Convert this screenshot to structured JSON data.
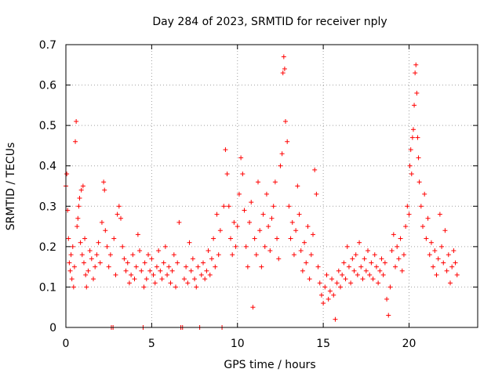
{
  "chart_data": {
    "type": "scatter",
    "title": "Day 284 of 2023, SRMTID for receiver nply",
    "xlabel": "GPS time / hours",
    "ylabel": "SRMTID / TECUs",
    "xlim": [
      0,
      24
    ],
    "ylim": [
      0,
      0.7
    ],
    "xticks": [
      0,
      5,
      10,
      15,
      20
    ],
    "xtick_labels": [
      "0",
      "5",
      "10",
      "15",
      "20"
    ],
    "yticks": [
      0,
      0.1,
      0.2,
      0.3,
      0.4,
      0.5,
      0.6,
      0.7
    ],
    "ytick_labels": [
      "0",
      "0.1",
      "0.2",
      "0.3",
      "0.4",
      "0.5",
      "0.6",
      "0.7"
    ],
    "grid": true,
    "marker": "+",
    "series": [
      {
        "name": "SRMTID",
        "color": "#ff0000",
        "points": [
          [
            0.0,
            0.35
          ],
          [
            0.05,
            0.38
          ],
          [
            0.1,
            0.29
          ],
          [
            0.15,
            0.22
          ],
          [
            0.2,
            0.16
          ],
          [
            0.25,
            0.14
          ],
          [
            0.3,
            0.18
          ],
          [
            0.35,
            0.12
          ],
          [
            0.4,
            0.2
          ],
          [
            0.45,
            0.1
          ],
          [
            0.5,
            0.15
          ],
          [
            0.55,
            0.46
          ],
          [
            0.6,
            0.51
          ],
          [
            0.65,
            0.25
          ],
          [
            0.7,
            0.27
          ],
          [
            0.75,
            0.3
          ],
          [
            0.8,
            0.32
          ],
          [
            0.85,
            0.21
          ],
          [
            0.9,
            0.34
          ],
          [
            0.95,
            0.18
          ],
          [
            1.0,
            0.35
          ],
          [
            1.05,
            0.16
          ],
          [
            1.1,
            0.22
          ],
          [
            1.15,
            0.13
          ],
          [
            1.2,
            0.1
          ],
          [
            1.3,
            0.14
          ],
          [
            1.4,
            0.19
          ],
          [
            1.5,
            0.17
          ],
          [
            1.6,
            0.12
          ],
          [
            1.7,
            0.15
          ],
          [
            1.8,
            0.18
          ],
          [
            1.9,
            0.21
          ],
          [
            2.0,
            0.16
          ],
          [
            2.1,
            0.26
          ],
          [
            2.2,
            0.36
          ],
          [
            2.25,
            0.34
          ],
          [
            2.3,
            0.24
          ],
          [
            2.4,
            0.2
          ],
          [
            2.5,
            0.15
          ],
          [
            2.6,
            0.18
          ],
          [
            2.65,
            0.0
          ],
          [
            2.75,
            0.0
          ],
          [
            2.8,
            0.22
          ],
          [
            2.9,
            0.13
          ],
          [
            3.0,
            0.28
          ],
          [
            3.1,
            0.3
          ],
          [
            3.2,
            0.27
          ],
          [
            3.3,
            0.2
          ],
          [
            3.4,
            0.17
          ],
          [
            3.5,
            0.14
          ],
          [
            3.6,
            0.16
          ],
          [
            3.7,
            0.11
          ],
          [
            3.8,
            0.13
          ],
          [
            3.9,
            0.18
          ],
          [
            4.0,
            0.12
          ],
          [
            4.1,
            0.15
          ],
          [
            4.2,
            0.23
          ],
          [
            4.3,
            0.19
          ],
          [
            4.4,
            0.14
          ],
          [
            4.5,
            0.0
          ],
          [
            4.55,
            0.1
          ],
          [
            4.6,
            0.16
          ],
          [
            4.7,
            0.12
          ],
          [
            4.8,
            0.18
          ],
          [
            4.9,
            0.14
          ],
          [
            5.0,
            0.17
          ],
          [
            5.1,
            0.13
          ],
          [
            5.2,
            0.11
          ],
          [
            5.3,
            0.15
          ],
          [
            5.4,
            0.19
          ],
          [
            5.5,
            0.14
          ],
          [
            5.6,
            0.12
          ],
          [
            5.7,
            0.16
          ],
          [
            5.8,
            0.2
          ],
          [
            5.9,
            0.13
          ],
          [
            6.0,
            0.15
          ],
          [
            6.1,
            0.11
          ],
          [
            6.2,
            0.14
          ],
          [
            6.3,
            0.18
          ],
          [
            6.4,
            0.1
          ],
          [
            6.5,
            0.16
          ],
          [
            6.6,
            0.26
          ],
          [
            6.7,
            0.0
          ],
          [
            6.8,
            0.0
          ],
          [
            6.9,
            0.12
          ],
          [
            7.0,
            0.15
          ],
          [
            7.1,
            0.11
          ],
          [
            7.2,
            0.21
          ],
          [
            7.3,
            0.14
          ],
          [
            7.4,
            0.17
          ],
          [
            7.5,
            0.12
          ],
          [
            7.6,
            0.1
          ],
          [
            7.7,
            0.15
          ],
          [
            7.8,
            0.0
          ],
          [
            7.9,
            0.13
          ],
          [
            8.0,
            0.16
          ],
          [
            8.1,
            0.12
          ],
          [
            8.2,
            0.14
          ],
          [
            8.3,
            0.19
          ],
          [
            8.4,
            0.13
          ],
          [
            8.5,
            0.17
          ],
          [
            8.6,
            0.22
          ],
          [
            8.7,
            0.15
          ],
          [
            8.8,
            0.28
          ],
          [
            8.9,
            0.18
          ],
          [
            9.0,
            0.24
          ],
          [
            9.1,
            0.0
          ],
          [
            9.2,
            0.3
          ],
          [
            9.3,
            0.44
          ],
          [
            9.4,
            0.38
          ],
          [
            9.5,
            0.3
          ],
          [
            9.6,
            0.22
          ],
          [
            9.7,
            0.18
          ],
          [
            9.8,
            0.26
          ],
          [
            9.9,
            0.2
          ],
          [
            10.0,
            0.25
          ],
          [
            10.1,
            0.33
          ],
          [
            10.2,
            0.42
          ],
          [
            10.3,
            0.38
          ],
          [
            10.4,
            0.29
          ],
          [
            10.5,
            0.2
          ],
          [
            10.6,
            0.15
          ],
          [
            10.7,
            0.26
          ],
          [
            10.8,
            0.31
          ],
          [
            10.9,
            0.05
          ],
          [
            11.0,
            0.22
          ],
          [
            11.1,
            0.18
          ],
          [
            11.2,
            0.36
          ],
          [
            11.3,
            0.24
          ],
          [
            11.4,
            0.15
          ],
          [
            11.5,
            0.28
          ],
          [
            11.6,
            0.2
          ],
          [
            11.7,
            0.33
          ],
          [
            11.8,
            0.25
          ],
          [
            11.9,
            0.19
          ],
          [
            12.0,
            0.27
          ],
          [
            12.1,
            0.3
          ],
          [
            12.2,
            0.36
          ],
          [
            12.3,
            0.22
          ],
          [
            12.4,
            0.17
          ],
          [
            12.5,
            0.4
          ],
          [
            12.6,
            0.43
          ],
          [
            12.65,
            0.63
          ],
          [
            12.7,
            0.67
          ],
          [
            12.75,
            0.64
          ],
          [
            12.8,
            0.51
          ],
          [
            12.9,
            0.46
          ],
          [
            13.0,
            0.3
          ],
          [
            13.1,
            0.22
          ],
          [
            13.2,
            0.26
          ],
          [
            13.3,
            0.18
          ],
          [
            13.4,
            0.24
          ],
          [
            13.5,
            0.35
          ],
          [
            13.6,
            0.28
          ],
          [
            13.7,
            0.19
          ],
          [
            13.8,
            0.14
          ],
          [
            13.9,
            0.21
          ],
          [
            14.0,
            0.16
          ],
          [
            14.1,
            0.25
          ],
          [
            14.2,
            0.12
          ],
          [
            14.3,
            0.18
          ],
          [
            14.4,
            0.23
          ],
          [
            14.5,
            0.39
          ],
          [
            14.6,
            0.33
          ],
          [
            14.7,
            0.15
          ],
          [
            14.8,
            0.11
          ],
          [
            14.9,
            0.08
          ],
          [
            15.0,
            0.06
          ],
          [
            15.1,
            0.1
          ],
          [
            15.2,
            0.13
          ],
          [
            15.3,
            0.07
          ],
          [
            15.4,
            0.09
          ],
          [
            15.5,
            0.12
          ],
          [
            15.6,
            0.08
          ],
          [
            15.7,
            0.02
          ],
          [
            15.8,
            0.11
          ],
          [
            15.9,
            0.14
          ],
          [
            16.0,
            0.1
          ],
          [
            16.1,
            0.13
          ],
          [
            16.2,
            0.16
          ],
          [
            16.3,
            0.12
          ],
          [
            16.4,
            0.2
          ],
          [
            16.5,
            0.15
          ],
          [
            16.6,
            0.11
          ],
          [
            16.7,
            0.17
          ],
          [
            16.8,
            0.14
          ],
          [
            16.9,
            0.18
          ],
          [
            17.0,
            0.13
          ],
          [
            17.1,
            0.21
          ],
          [
            17.2,
            0.15
          ],
          [
            17.3,
            0.12
          ],
          [
            17.4,
            0.17
          ],
          [
            17.5,
            0.14
          ],
          [
            17.6,
            0.19
          ],
          [
            17.7,
            0.13
          ],
          [
            17.8,
            0.16
          ],
          [
            17.9,
            0.12
          ],
          [
            18.0,
            0.18
          ],
          [
            18.1,
            0.15
          ],
          [
            18.2,
            0.11
          ],
          [
            18.3,
            0.14
          ],
          [
            18.4,
            0.17
          ],
          [
            18.5,
            0.13
          ],
          [
            18.6,
            0.16
          ],
          [
            18.7,
            0.07
          ],
          [
            18.8,
            0.03
          ],
          [
            18.9,
            0.1
          ],
          [
            19.0,
            0.19
          ],
          [
            19.1,
            0.23
          ],
          [
            19.2,
            0.15
          ],
          [
            19.3,
            0.2
          ],
          [
            19.4,
            0.17
          ],
          [
            19.5,
            0.22
          ],
          [
            19.6,
            0.14
          ],
          [
            19.7,
            0.18
          ],
          [
            19.8,
            0.25
          ],
          [
            19.9,
            0.3
          ],
          [
            20.0,
            0.28
          ],
          [
            20.05,
            0.4
          ],
          [
            20.1,
            0.44
          ],
          [
            20.15,
            0.38
          ],
          [
            20.2,
            0.47
          ],
          [
            20.25,
            0.49
          ],
          [
            20.3,
            0.55
          ],
          [
            20.35,
            0.63
          ],
          [
            20.4,
            0.65
          ],
          [
            20.45,
            0.58
          ],
          [
            20.5,
            0.47
          ],
          [
            20.55,
            0.42
          ],
          [
            20.6,
            0.36
          ],
          [
            20.7,
            0.3
          ],
          [
            20.8,
            0.25
          ],
          [
            20.9,
            0.33
          ],
          [
            21.0,
            0.22
          ],
          [
            21.1,
            0.27
          ],
          [
            21.2,
            0.18
          ],
          [
            21.3,
            0.21
          ],
          [
            21.4,
            0.15
          ],
          [
            21.5,
            0.19
          ],
          [
            21.6,
            0.13
          ],
          [
            21.7,
            0.17
          ],
          [
            21.8,
            0.28
          ],
          [
            21.9,
            0.2
          ],
          [
            22.0,
            0.16
          ],
          [
            22.1,
            0.24
          ],
          [
            22.2,
            0.14
          ],
          [
            22.3,
            0.18
          ],
          [
            22.4,
            0.11
          ],
          [
            22.5,
            0.15
          ],
          [
            22.6,
            0.19
          ],
          [
            22.7,
            0.16
          ],
          [
            22.8,
            0.13
          ]
        ]
      }
    ]
  }
}
